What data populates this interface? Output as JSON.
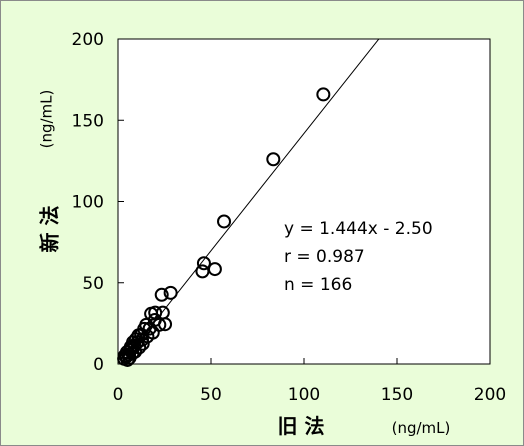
{
  "colors": {
    "background": "#eafdd9",
    "plot_area": "#ffffff",
    "axis": "#000000",
    "marker_stroke": "#000000",
    "fit_line": "#000000"
  },
  "chart_data": {
    "type": "scatter",
    "title": "",
    "xlabel": "旧 法",
    "xlabel_unit": "(ng/mL)",
    "ylabel": "新 法",
    "ylabel_unit": "(ng/mL)",
    "xlim": [
      0,
      200
    ],
    "ylim": [
      0,
      200
    ],
    "xticks": [
      "0",
      "50",
      "100",
      "150",
      "200"
    ],
    "yticks": [
      "0",
      "50",
      "100",
      "150",
      "200"
    ],
    "grid": false,
    "legend": "none",
    "marker": "open-circle",
    "annotations": [
      "y = 1.444x - 2.50",
      "r = 0.987",
      "n = 166"
    ],
    "fit_line": {
      "slope": 1.444,
      "intercept": -2.5
    },
    "series": [
      {
        "values": [
          [
            110.4,
            165.9
          ],
          [
            83.5,
            126.0
          ],
          [
            57.0,
            87.7
          ],
          [
            46.2,
            62.0
          ],
          [
            45.4,
            57.0
          ],
          [
            52.1,
            58.4
          ],
          [
            28.3,
            43.8
          ],
          [
            23.5,
            42.6
          ],
          [
            24.1,
            31.6
          ],
          [
            25.3,
            24.5
          ],
          [
            22.2,
            24.1
          ],
          [
            20.0,
            31.6
          ],
          [
            17.8,
            30.9
          ],
          [
            15.2,
            24.1
          ],
          [
            14.1,
            21.6
          ],
          [
            17.0,
            21.8
          ],
          [
            18.7,
            19.3
          ],
          [
            19.8,
            27.1
          ],
          [
            12.5,
            18.0
          ],
          [
            11.0,
            17.6
          ],
          [
            9.6,
            15.2
          ],
          [
            10.3,
            13.2
          ],
          [
            13.3,
            12.5
          ],
          [
            8.8,
            11.0
          ],
          [
            7.4,
            9.7
          ],
          [
            6.6,
            8.3
          ],
          [
            5.9,
            5.9
          ],
          [
            4.8,
            7.3
          ],
          [
            4.4,
            4.4
          ],
          [
            6.2,
            3.8
          ],
          [
            3.7,
            5.2
          ],
          [
            7.8,
            6.6
          ],
          [
            11.4,
            10.2
          ],
          [
            8.1,
            13.4
          ],
          [
            15.8,
            17.0
          ],
          [
            5.1,
            2.5
          ],
          [
            9.2,
            7.6
          ],
          [
            12.9,
            14.9
          ],
          [
            3.3,
            3.2
          ],
          [
            6.9,
            10.6
          ]
        ]
      }
    ]
  }
}
